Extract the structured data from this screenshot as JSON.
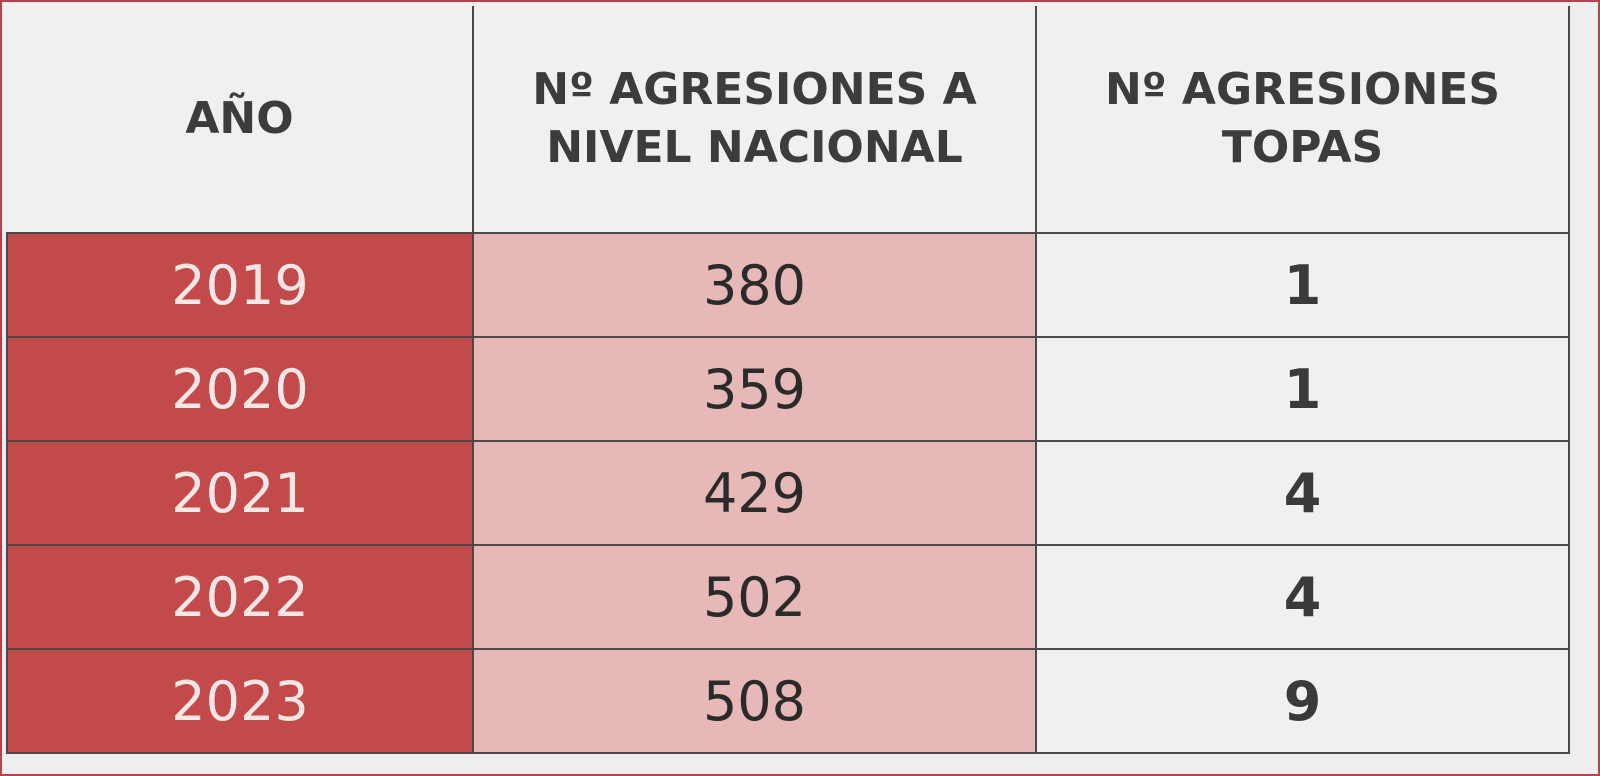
{
  "chart_data": {
    "type": "table",
    "columns": [
      "AÑO",
      "Nº AGRESIONES A NIVEL NACIONAL",
      "Nº AGRESIONES TOPAS"
    ],
    "rows": [
      {
        "year": "2019",
        "nacional": "380",
        "topas": "1"
      },
      {
        "year": "2020",
        "nacional": "359",
        "topas": "1"
      },
      {
        "year": "2021",
        "nacional": "429",
        "topas": "4"
      },
      {
        "year": "2022",
        "nacional": "502",
        "topas": "4"
      },
      {
        "year": "2023",
        "nacional": "508",
        "topas": "9"
      }
    ]
  },
  "colors": {
    "year_bg": "#c24a4b",
    "nacional_bg": "#e6b8b8",
    "header_bg": "#f0f0f0",
    "border": "#b8404a"
  }
}
